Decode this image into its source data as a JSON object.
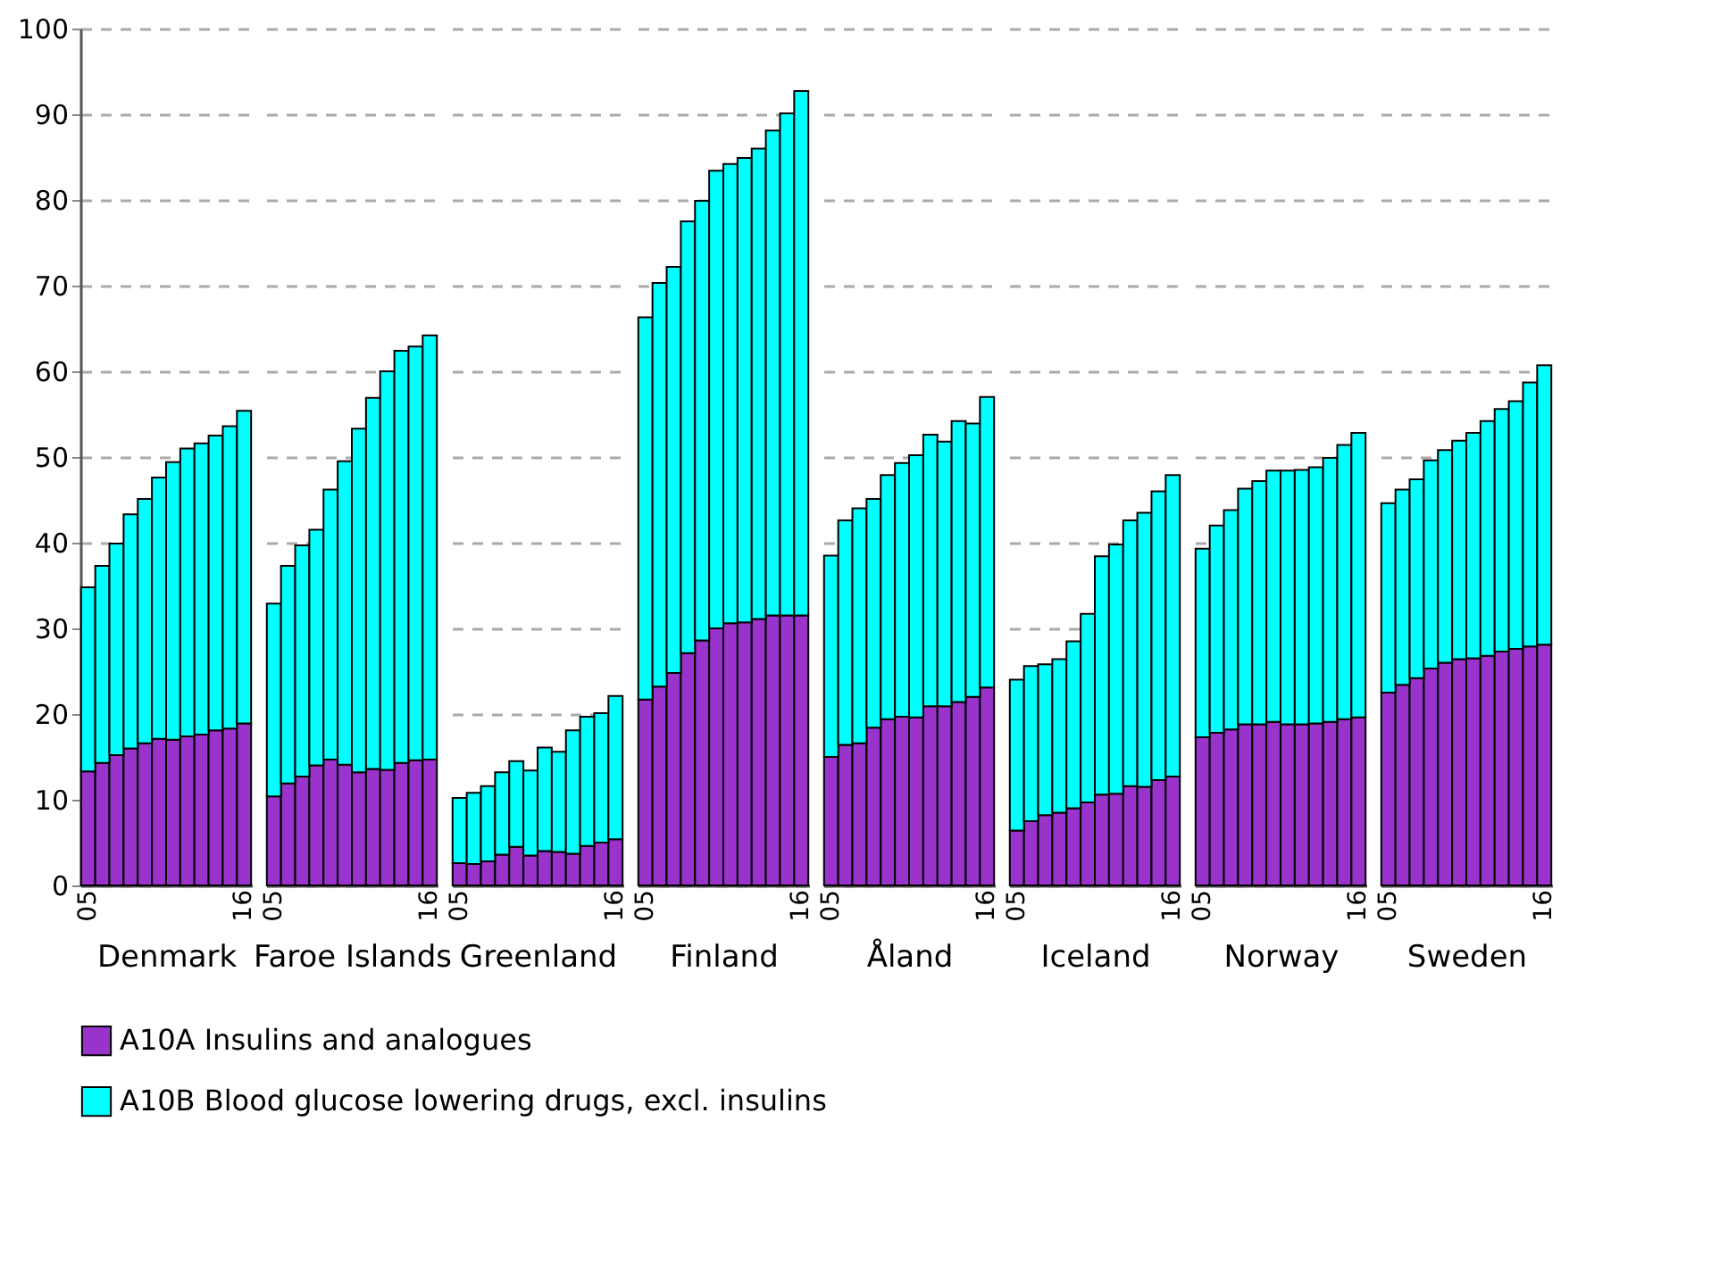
{
  "chart_data": [
    {
      "type": "bar",
      "stacked": true,
      "xlabel": "Denmark",
      "categories": [
        "05",
        null,
        null,
        null,
        null,
        null,
        null,
        null,
        null,
        null,
        null,
        "16"
      ],
      "ylim": [
        0,
        100
      ],
      "yticks": [
        0,
        10,
        20,
        30,
        40,
        50,
        60,
        70,
        80,
        90,
        100
      ],
      "grid": "y",
      "legend": "bottom",
      "series": [
        {
          "name": "A10A  Insulins and analogues",
          "color": "#9933cc",
          "values": [
            13.3,
            14.3,
            15.2,
            16.0,
            16.6,
            17.1,
            17.0,
            17.4,
            17.6,
            18.1,
            18.3,
            18.9
          ]
        },
        {
          "name": "A10B  Blood glucose lowering drugs, excl. insulins",
          "color": "#00ffff",
          "values": [
            21.5,
            23.0,
            24.7,
            27.3,
            28.5,
            30.5,
            32.4,
            33.6,
            34.0,
            34.4,
            35.3,
            36.5
          ]
        }
      ]
    },
    {
      "type": "bar",
      "stacked": true,
      "xlabel": "Faroe Islands",
      "categories": [
        "05",
        null,
        null,
        null,
        null,
        null,
        null,
        null,
        null,
        null,
        null,
        "16"
      ],
      "ylim": [
        0,
        100
      ],
      "grid": "y",
      "tick_labels": "x",
      "series": [
        {
          "color": "#9933cc",
          "values": [
            10.4,
            11.9,
            12.7,
            14.0,
            14.7,
            14.1,
            13.2,
            13.6,
            13.5,
            14.3,
            14.6,
            14.7
          ]
        },
        {
          "color": "#00ffff",
          "values": [
            22.5,
            25.4,
            27.0,
            27.5,
            31.5,
            35.4,
            40.1,
            43.3,
            46.5,
            48.1,
            48.3,
            49.5
          ]
        }
      ]
    },
    {
      "type": "bar",
      "stacked": true,
      "xlabel": "Greenland",
      "categories": [
        "05",
        null,
        null,
        null,
        null,
        null,
        null,
        null,
        null,
        null,
        null,
        "16"
      ],
      "ylim": [
        0,
        100
      ],
      "grid": "y",
      "tick_labels": "x",
      "series": [
        {
          "color": "#9933cc",
          "values": [
            2.6,
            2.5,
            2.8,
            3.6,
            4.5,
            3.5,
            4.0,
            3.9,
            3.7,
            4.6,
            5.0,
            5.4
          ]
        },
        {
          "color": "#00ffff",
          "values": [
            7.6,
            8.3,
            8.8,
            9.6,
            10.0,
            9.9,
            12.1,
            11.7,
            14.4,
            15.1,
            15.1,
            16.7
          ]
        }
      ]
    },
    {
      "type": "bar",
      "stacked": true,
      "xlabel": "Finland",
      "categories": [
        "05",
        null,
        null,
        null,
        null,
        null,
        null,
        null,
        null,
        null,
        null,
        "16"
      ],
      "ylim": [
        0,
        100
      ],
      "grid": "y",
      "tick_labels": "x",
      "series": [
        {
          "color": "#9933cc",
          "values": [
            21.7,
            23.2,
            24.8,
            27.1,
            28.6,
            30.0,
            30.6,
            30.7,
            31.1,
            31.5,
            31.5,
            31.5
          ]
        },
        {
          "color": "#00ffff",
          "values": [
            44.6,
            47.1,
            47.4,
            50.4,
            51.3,
            53.4,
            53.6,
            54.2,
            54.9,
            56.6,
            58.6,
            61.2
          ]
        }
      ]
    },
    {
      "type": "bar",
      "stacked": true,
      "xlabel": "Åland",
      "categories": [
        "05",
        null,
        null,
        null,
        null,
        null,
        null,
        null,
        null,
        null,
        null,
        "16"
      ],
      "ylim": [
        0,
        100
      ],
      "grid": "y",
      "tick_labels": "x",
      "series": [
        {
          "color": "#9933cc",
          "values": [
            15.0,
            16.4,
            16.6,
            18.4,
            19.4,
            19.7,
            19.6,
            20.9,
            20.9,
            21.4,
            22.0,
            23.1
          ]
        },
        {
          "color": "#00ffff",
          "values": [
            23.5,
            26.2,
            27.4,
            26.7,
            28.5,
            29.6,
            30.6,
            31.7,
            30.9,
            32.8,
            31.9,
            33.9
          ]
        }
      ]
    },
    {
      "type": "bar",
      "stacked": true,
      "xlabel": "Iceland",
      "categories": [
        "05",
        null,
        null,
        null,
        null,
        null,
        null,
        null,
        null,
        null,
        null,
        "16"
      ],
      "ylim": [
        0,
        100
      ],
      "grid": "y",
      "tick_labels": "x",
      "series": [
        {
          "color": "#9933cc",
          "values": [
            6.4,
            7.5,
            8.2,
            8.5,
            9.0,
            9.7,
            10.6,
            10.7,
            11.6,
            11.5,
            12.3,
            12.7
          ]
        },
        {
          "color": "#00ffff",
          "values": [
            17.6,
            18.1,
            17.6,
            17.9,
            19.5,
            22.0,
            27.8,
            29.1,
            31.0,
            32.0,
            33.7,
            35.2
          ]
        }
      ]
    },
    {
      "type": "bar",
      "stacked": true,
      "xlabel": "Norway",
      "categories": [
        "05",
        null,
        null,
        null,
        null,
        null,
        null,
        null,
        null,
        null,
        null,
        "16"
      ],
      "ylim": [
        0,
        100
      ],
      "grid": "y",
      "tick_labels": "x",
      "series": [
        {
          "color": "#9933cc",
          "values": [
            17.3,
            17.8,
            18.2,
            18.8,
            18.8,
            19.1,
            18.8,
            18.8,
            18.9,
            19.1,
            19.4,
            19.6
          ]
        },
        {
          "color": "#00ffff",
          "values": [
            22.0,
            24.2,
            25.6,
            27.5,
            28.4,
            29.3,
            29.6,
            29.7,
            29.9,
            30.8,
            32.0,
            33.2
          ]
        }
      ]
    },
    {
      "type": "bar",
      "stacked": true,
      "xlabel": "Sweden",
      "categories": [
        "05",
        null,
        null,
        null,
        null,
        null,
        null,
        null,
        null,
        null,
        null,
        "16"
      ],
      "ylim": [
        0,
        100
      ],
      "grid": "y",
      "tick_labels": "x",
      "series": [
        {
          "color": "#9933cc",
          "values": [
            22.5,
            23.4,
            24.2,
            25.3,
            26.0,
            26.4,
            26.5,
            26.8,
            27.3,
            27.6,
            27.9,
            28.1
          ]
        },
        {
          "color": "#00ffff",
          "values": [
            22.1,
            22.8,
            23.2,
            24.3,
            24.8,
            25.5,
            26.3,
            27.4,
            28.3,
            28.9,
            30.8,
            32.6
          ]
        }
      ]
    }
  ]
}
